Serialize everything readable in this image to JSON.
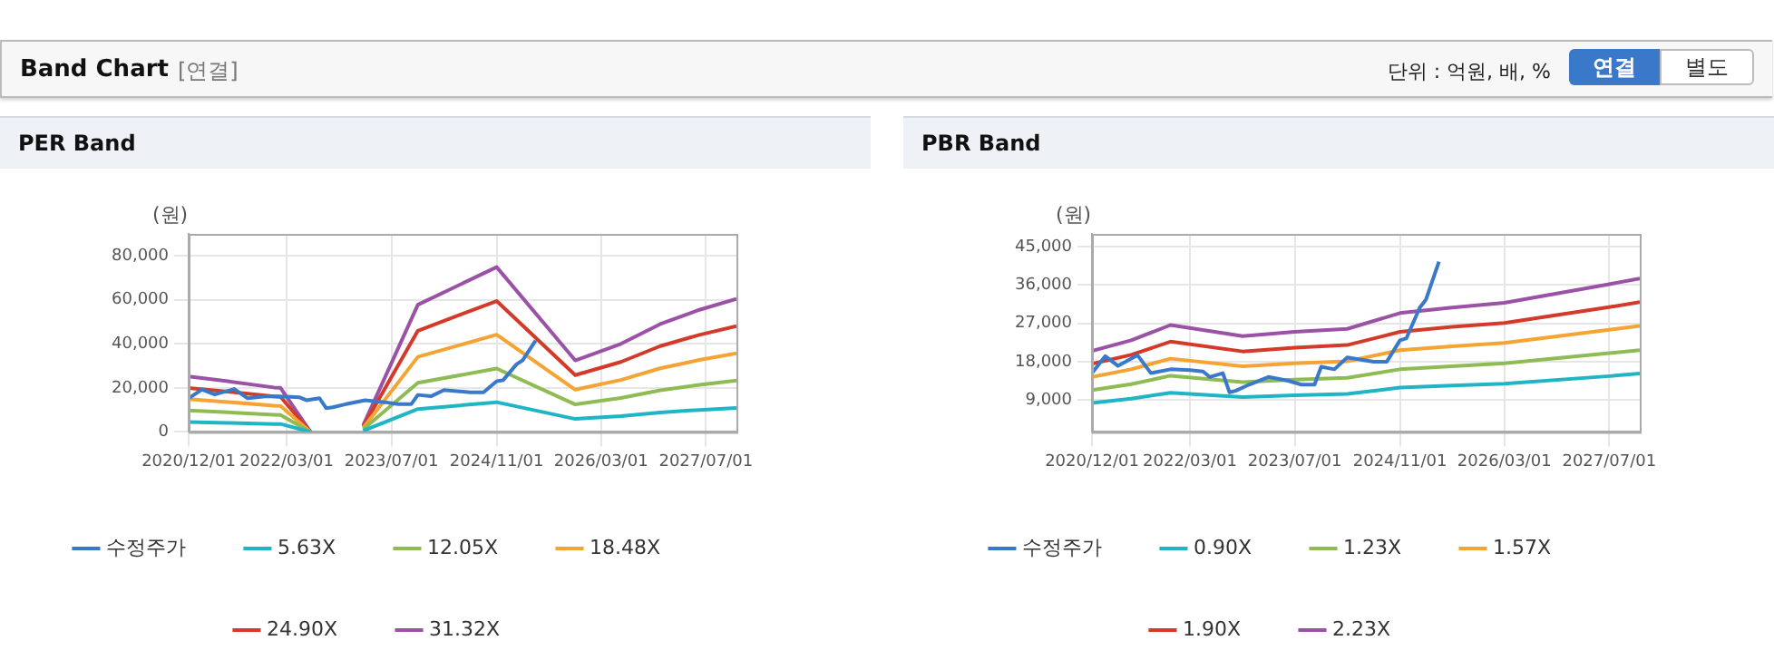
{
  "chart_data": [
    {
      "type": "other",
      "title": "Band Chart",
      "annotations": [
        "[연결]",
        "단위 : 억원, 배, %",
        "연결",
        "별도"
      ]
    },
    {
      "type": "line",
      "title": "PER Band",
      "ylabel": "(원)",
      "x": [
        "2020-12-01",
        "2021-06-01",
        "2022-01-01",
        "2022-02-01",
        "2022-06-20",
        "2022-10-01",
        "2023-02-20",
        "2023-11-01",
        "2024-11-01",
        "2025-11-01",
        "2026-06-01",
        "2026-12-01",
        "2027-06-01",
        "2027-11-20"
      ],
      "xlim": [
        "2020-12-01",
        "2027-11-20"
      ],
      "xticks": [
        {
          "value": "2020-12-01",
          "label": "2020/12/01"
        },
        {
          "value": "2022-03-01",
          "label": "2022/03/01"
        },
        {
          "value": "2023-07-01",
          "label": "2023/07/01"
        },
        {
          "value": "2024-11-01",
          "label": "2024/11/01"
        },
        {
          "value": "2026-03-01",
          "label": "2026/03/01"
        },
        {
          "value": "2027-07-01",
          "label": "2027/07/01"
        }
      ],
      "ylim": [
        0,
        90000
      ],
      "yticks": [
        0,
        {
          "value": 20000,
          "label": "20,000"
        },
        {
          "value": 40000,
          "label": "40,000"
        },
        {
          "value": 60000,
          "label": "60,000"
        },
        {
          "value": 80000,
          "label": "80,000"
        }
      ],
      "grid": true,
      "legend": "bottom",
      "series": [
        {
          "name": "수정주가",
          "color": "#3a78c9",
          "x": [
            "2020-12-01",
            "2021-02-01",
            "2021-04-01",
            "2021-07-01",
            "2021-09-01",
            "2021-12-01",
            "2022-03-01",
            "2022-05-01",
            "2022-06-01",
            "2022-08-01",
            "2022-09-01",
            "2022-10-01",
            "2022-12-01",
            "2023-03-01",
            "2023-06-01",
            "2023-08-01",
            "2023-10-01",
            "2023-11-01",
            "2024-01-01",
            "2024-03-01",
            "2024-07-01",
            "2024-09-01",
            "2024-11-01",
            "2024-12-01",
            "2025-02-01",
            "2025-03-01",
            "2025-05-01"
          ],
          "values": [
            15300,
            19300,
            17000,
            19500,
            15300,
            16200,
            16000,
            15700,
            14400,
            15300,
            10800,
            11200,
            12600,
            14400,
            13500,
            12600,
            12600,
            16800,
            16200,
            19000,
            18000,
            18000,
            23000,
            23500,
            30700,
            32500,
            41500
          ]
        },
        {
          "name": "5.63X",
          "color": "#1fb5c4",
          "values": [
            4500,
            4100,
            3600,
            3600,
            0,
            null,
            500,
            10400,
            13500,
            5900,
            7200,
            8800,
            10000,
            10900
          ]
        },
        {
          "name": "12.05X",
          "color": "#8fbb55",
          "values": [
            9700,
            8900,
            7800,
            7700,
            0,
            null,
            1200,
            22300,
            28800,
            12500,
            15400,
            18900,
            21400,
            23300
          ]
        },
        {
          "name": "18.48X",
          "color": "#f4a433",
          "values": [
            14900,
            13600,
            11900,
            11800,
            0,
            null,
            1800,
            34100,
            44200,
            19200,
            23600,
            28900,
            32700,
            35700
          ]
        },
        {
          "name": "24.90X",
          "color": "#d33a2a",
          "values": [
            20000,
            18300,
            16100,
            15900,
            0,
            null,
            2400,
            46000,
            59500,
            25800,
            31800,
            39000,
            44100,
            48100
          ]
        },
        {
          "name": "31.32X",
          "color": "#9b52a6",
          "values": [
            25200,
            23000,
            20200,
            20000,
            0,
            null,
            3000,
            57800,
            74900,
            32500,
            40000,
            49000,
            55500,
            60500
          ]
        }
      ]
    },
    {
      "type": "line",
      "title": "PBR Band",
      "ylabel": "(원)",
      "x": [
        "2020-12-01",
        "2021-06-01",
        "2021-12-01",
        "2022-11-01",
        "2023-07-01",
        "2024-03-01",
        "2024-11-01",
        "2025-07-01",
        "2026-03-01",
        "2027-07-01",
        "2027-11-20"
      ],
      "xlim": [
        "2020-12-01",
        "2027-11-20"
      ],
      "xticks": [
        {
          "value": "2020-12-01",
          "label": "2020/12/01"
        },
        {
          "value": "2022-03-01",
          "label": "2022/03/01"
        },
        {
          "value": "2023-07-01",
          "label": "2023/07/01"
        },
        {
          "value": "2024-11-01",
          "label": "2024/11/01"
        },
        {
          "value": "2026-03-01",
          "label": "2026/03/01"
        },
        {
          "value": "2027-07-01",
          "label": "2027/07/01"
        }
      ],
      "ylim": [
        1500,
        48000
      ],
      "yticks": [
        {
          "value": 9000,
          "label": "9,000"
        },
        {
          "value": 18000,
          "label": "18,000"
        },
        {
          "value": 27000,
          "label": "27,000"
        },
        {
          "value": 36000,
          "label": "36,000"
        },
        {
          "value": 45000,
          "label": "45,000"
        }
      ],
      "grid": true,
      "legend": "bottom",
      "series": [
        {
          "name": "수정주가",
          "color": "#3a78c9",
          "x": [
            "2020-12-01",
            "2021-02-01",
            "2021-04-01",
            "2021-07-01",
            "2021-09-01",
            "2021-12-01",
            "2022-03-01",
            "2022-05-01",
            "2022-06-01",
            "2022-08-01",
            "2022-09-01",
            "2022-10-01",
            "2022-12-01",
            "2023-03-01",
            "2023-06-01",
            "2023-08-01",
            "2023-10-01",
            "2023-11-01",
            "2024-01-01",
            "2024-03-01",
            "2024-07-01",
            "2024-09-01",
            "2024-11-01",
            "2024-12-01",
            "2025-02-01",
            "2025-03-01",
            "2025-05-01"
          ],
          "values": [
            15300,
            19300,
            17000,
            19500,
            15300,
            16200,
            16000,
            15700,
            14400,
            15300,
            10800,
            11200,
            12600,
            14400,
            13500,
            12600,
            12600,
            16800,
            16200,
            19000,
            18000,
            18000,
            23000,
            23500,
            30700,
            32500,
            41500
          ]
        },
        {
          "name": "0.90X",
          "color": "#1fb5c4",
          "values": [
            8300,
            9300,
            10700,
            9700,
            10100,
            10400,
            11900,
            12400,
            12800,
            14600,
            15200
          ]
        },
        {
          "name": "1.23X",
          "color": "#8fbb55",
          "values": [
            11300,
            12700,
            14700,
            13200,
            13800,
            14200,
            16200,
            16900,
            17600,
            20000,
            20700
          ]
        },
        {
          "name": "1.57X",
          "color": "#f4a433",
          "values": [
            14400,
            16200,
            18700,
            16900,
            17600,
            18100,
            20700,
            21600,
            22400,
            25500,
            26400
          ]
        },
        {
          "name": "1.90X",
          "color": "#d33a2a",
          "values": [
            17500,
            19600,
            22700,
            20400,
            21300,
            21900,
            25000,
            26200,
            27100,
            30800,
            32000
          ]
        },
        {
          "name": "2.23X",
          "color": "#9b52a6",
          "values": [
            20500,
            23000,
            26600,
            24000,
            25000,
            25700,
            29400,
            30700,
            31800,
            36200,
            37500
          ]
        }
      ]
    }
  ]
}
